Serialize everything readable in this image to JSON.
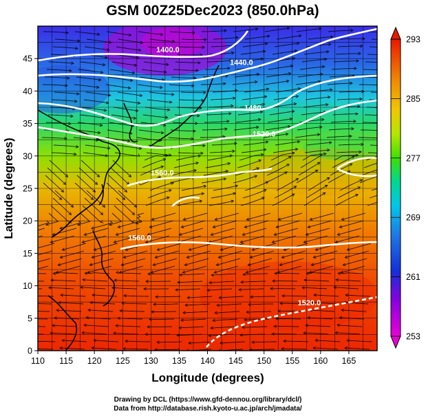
{
  "map": {
    "title": "GSM 00Z25Dec2023 (850.0hPa)",
    "xlabel": "Longitude (degrees)",
    "ylabel": "Latitude  (degrees)",
    "x_ticks": [
      "110",
      "115",
      "120",
      "125",
      "130",
      "135",
      "140",
      "145",
      "150",
      "155",
      "160",
      "165"
    ],
    "y_ticks": [
      "0",
      "5",
      "10",
      "15",
      "20",
      "25",
      "30",
      "35",
      "40",
      "45"
    ],
    "lon_range": [
      110,
      170
    ],
    "lat_range": [
      0,
      50
    ],
    "grid": true,
    "colorbar": {
      "ticks": [
        "253",
        "261",
        "269",
        "277",
        "285",
        "293"
      ],
      "range": [
        253,
        293
      ],
      "colors": [
        "#e800d8",
        "#8a00e0",
        "#1430d8",
        "#1e78e6",
        "#00c8e8",
        "#00d890",
        "#3ee000",
        "#b4e600",
        "#f0c800",
        "#f08a00",
        "#ee4a00",
        "#e81800"
      ]
    },
    "contours": [
      {
        "label": "1400.0",
        "lon": 133,
        "lat": 46
      },
      {
        "label": "1440.0",
        "lon": 146,
        "lat": 44
      },
      {
        "label": "1480",
        "lon": 148,
        "lat": 37
      },
      {
        "label": "1520.0",
        "lon": 150,
        "lat": 33
      },
      {
        "label": "1560.0",
        "lon": 132,
        "lat": 27
      },
      {
        "label": "1560.0",
        "lon": 128,
        "lat": 17
      },
      {
        "label": "1520.0",
        "lon": 158,
        "lat": 7
      }
    ]
  },
  "credits": {
    "line1": "Drawing by DCL (https://www.gfd-dennou.org/library/dcl/)",
    "line2": "Data from http://database.rish.kyoto-u.ac.jp/arch/jmadata/"
  }
}
